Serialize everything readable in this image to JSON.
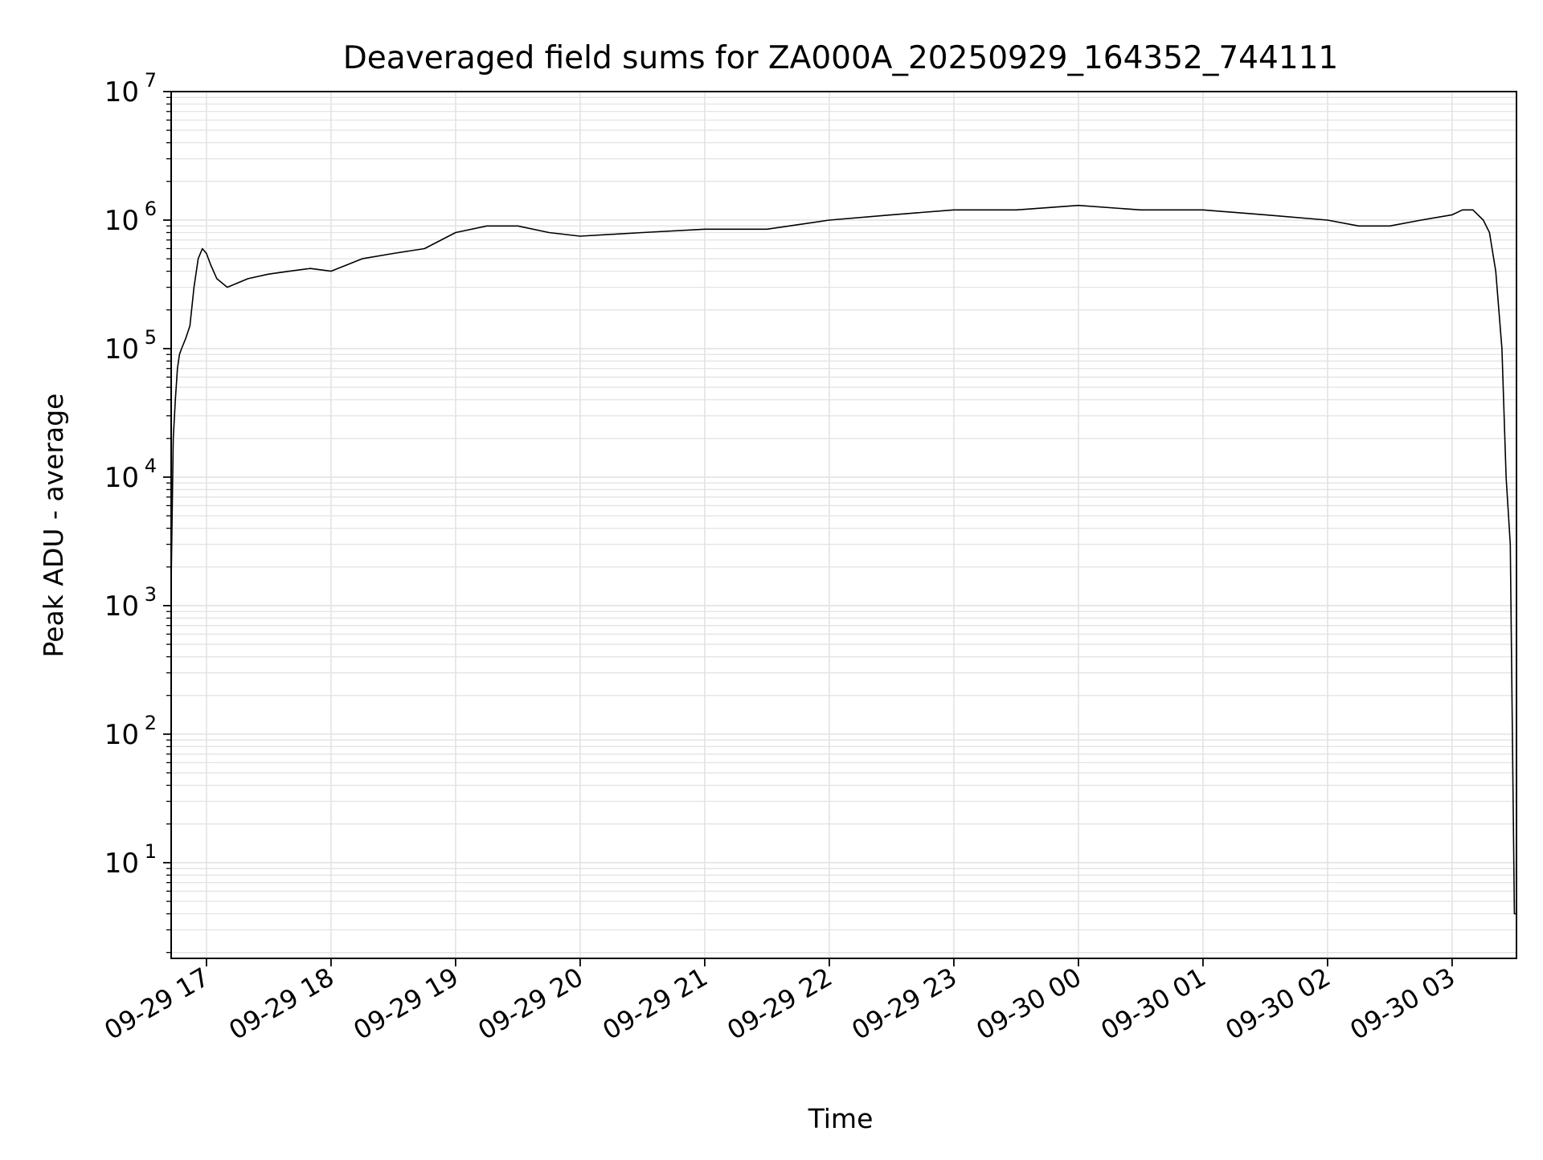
{
  "chart_data": {
    "type": "line",
    "title": "Deaveraged field sums for ZA000A_20250929_164352_744111",
    "xlabel": "Time",
    "ylabel": "Peak ADU - average",
    "yscale": "log",
    "ylim": [
      1.8,
      10000000
    ],
    "xlim": [
      "2025-09-29 16:43",
      "2025-09-30 03:31"
    ],
    "grid": true,
    "line_color": "#000000",
    "grid_color": "#e3e3e3",
    "x_ticks": [
      {
        "value": "2025-09-29 17:00",
        "label": "09-29 17"
      },
      {
        "value": "2025-09-29 18:00",
        "label": "09-29 18"
      },
      {
        "value": "2025-09-29 19:00",
        "label": "09-29 19"
      },
      {
        "value": "2025-09-29 20:00",
        "label": "09-29 20"
      },
      {
        "value": "2025-09-29 21:00",
        "label": "09-29 21"
      },
      {
        "value": "2025-09-29 22:00",
        "label": "09-29 22"
      },
      {
        "value": "2025-09-29 23:00",
        "label": "09-29 23"
      },
      {
        "value": "2025-09-30 00:00",
        "label": "09-30 00"
      },
      {
        "value": "2025-09-30 01:00",
        "label": "09-30 01"
      },
      {
        "value": "2025-09-30 02:00",
        "label": "09-30 02"
      },
      {
        "value": "2025-09-30 03:00",
        "label": "09-30 03"
      }
    ],
    "y_ticks": [
      {
        "value": 10,
        "base": "10",
        "exp": "1"
      },
      {
        "value": 100,
        "base": "10",
        "exp": "2"
      },
      {
        "value": 1000,
        "base": "10",
        "exp": "3"
      },
      {
        "value": 10000,
        "base": "10",
        "exp": "4"
      },
      {
        "value": 100000,
        "base": "10",
        "exp": "5"
      },
      {
        "value": 1000000,
        "base": "10",
        "exp": "6"
      },
      {
        "value": 10000000,
        "base": "10",
        "exp": "7"
      }
    ],
    "series": [
      {
        "x": [
          "2025-09-29 16:43",
          "2025-09-29 16:44",
          "2025-09-29 16:45",
          "2025-09-29 16:46",
          "2025-09-29 16:47",
          "2025-09-29 16:48",
          "2025-09-29 16:50",
          "2025-09-29 16:52",
          "2025-09-29 16:54",
          "2025-09-29 16:56",
          "2025-09-29 16:58",
          "2025-09-29 17:00",
          "2025-09-29 17:02",
          "2025-09-29 17:05",
          "2025-09-29 17:10",
          "2025-09-29 17:20",
          "2025-09-29 17:30",
          "2025-09-29 17:40",
          "2025-09-29 17:50",
          "2025-09-29 18:00",
          "2025-09-29 18:15",
          "2025-09-29 18:30",
          "2025-09-29 18:45",
          "2025-09-29 19:00",
          "2025-09-29 19:15",
          "2025-09-29 19:30",
          "2025-09-29 19:45",
          "2025-09-29 20:00",
          "2025-09-29 20:30",
          "2025-09-29 21:00",
          "2025-09-29 21:30",
          "2025-09-29 22:00",
          "2025-09-29 22:30",
          "2025-09-29 23:00",
          "2025-09-29 23:30",
          "2025-09-30 00:00",
          "2025-09-30 00:30",
          "2025-09-30 01:00",
          "2025-09-30 01:30",
          "2025-09-30 02:00",
          "2025-09-30 02:15",
          "2025-09-30 02:30",
          "2025-09-30 02:45",
          "2025-09-30 03:00",
          "2025-09-30 03:05",
          "2025-09-30 03:10",
          "2025-09-30 03:15",
          "2025-09-30 03:18",
          "2025-09-30 03:21",
          "2025-09-30 03:24",
          "2025-09-30 03:26",
          "2025-09-30 03:28",
          "2025-09-30 03:30",
          "2025-09-30 03:31"
        ],
        "y": [
          1500,
          20000,
          40000,
          70000,
          90000,
          100000,
          120000,
          150000,
          300000,
          500000,
          600000,
          550000,
          450000,
          350000,
          300000,
          350000,
          380000,
          400000,
          420000,
          400000,
          500000,
          550000,
          600000,
          800000,
          900000,
          900000,
          800000,
          750000,
          800000,
          850000,
          850000,
          1000000,
          1100000,
          1200000,
          1200000,
          1300000,
          1200000,
          1200000,
          1100000,
          1000000,
          900000,
          900000,
          1000000,
          1100000,
          1200000,
          1200000,
          1000000,
          800000,
          400000,
          100000,
          10000,
          3000,
          4,
          4
        ]
      }
    ]
  }
}
